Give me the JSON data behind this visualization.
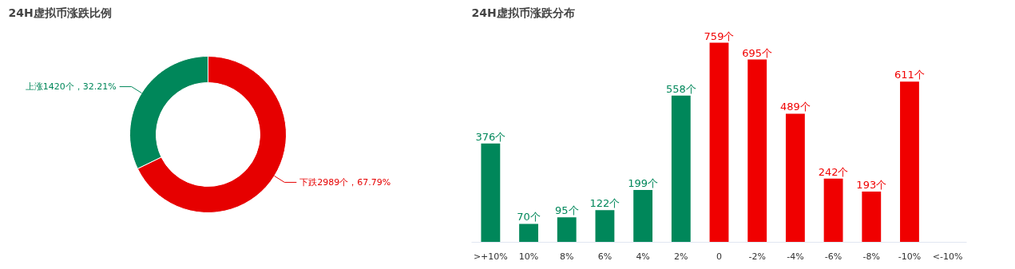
{
  "chart_data": [
    {
      "type": "donut",
      "title": "24H虚拟币涨跌比例",
      "categories": [
        "上涨1420个，32.21%",
        "下跌2989个，67.79%"
      ],
      "values": [
        1420,
        2989
      ],
      "colors": [
        "#00875a",
        "#e60000"
      ]
    },
    {
      "type": "bar",
      "title": "24H虚拟币涨跌分布",
      "categories": [
        ">+10%",
        "10%",
        "8%",
        "6%",
        "4%",
        "2%",
        "0",
        "-2%",
        "-4%",
        "-6%",
        "-8%",
        "-10%",
        "<-10%"
      ],
      "values": [
        376,
        70,
        95,
        122,
        199,
        558,
        759,
        695,
        489,
        242,
        193,
        611,
        null
      ],
      "colors": [
        "#00875a",
        "#00875a",
        "#00875a",
        "#00875a",
        "#00875a",
        "#00875a",
        "#f00000",
        "#f00000",
        "#f00000",
        "#f00000",
        "#f00000",
        "#f00000",
        null
      ],
      "value_labels": [
        "376个",
        "70个",
        "95个",
        "122个",
        "199个",
        "558个",
        "759个",
        "695个",
        "489个",
        "242个",
        "193个",
        "611个",
        null
      ],
      "grid": false
    }
  ]
}
